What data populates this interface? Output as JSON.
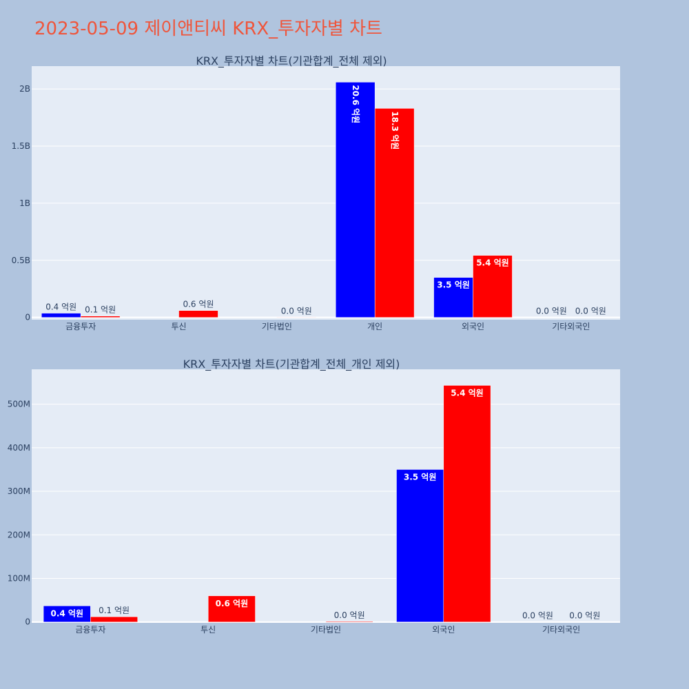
{
  "page": {
    "title": "2023-05-09 제이앤티씨 KRX_투자자별 차트",
    "title_color": "#ef553b",
    "background": "#b0c4de",
    "plot_background": "#e5ecf6"
  },
  "chart_data": [
    {
      "type": "bar",
      "title": "KRX_투자자별 차트(기관합계_전체 제외)",
      "categories": [
        "금융투자",
        "투신",
        "기타법인",
        "개인",
        "외국인",
        "기타외국인"
      ],
      "series": [
        {
          "color": "#0000ff",
          "values": [
            37000000,
            0,
            0,
            2060000000,
            350000000,
            0
          ],
          "labels": [
            "0.4 억원",
            "",
            "",
            "20.6 억원",
            "3.5 억원",
            "0.0 억원"
          ],
          "label_positions": [
            "outside",
            "",
            "",
            "inside-rotated",
            "inside",
            "outside"
          ]
        },
        {
          "color": "#ff0000",
          "values": [
            12000000,
            60000000,
            1500000,
            1830000000,
            543000000,
            0
          ],
          "labels": [
            "0.1 억원",
            "0.6 억원",
            "0.0 억원",
            "18.3 억원",
            "5.4 억원",
            "0.0 억원"
          ],
          "label_positions": [
            "outside",
            "outside",
            "outside",
            "inside-rotated",
            "inside",
            "outside"
          ]
        }
      ],
      "y_ticks": [
        0,
        500000000,
        1000000000,
        1500000000,
        2000000000
      ],
      "y_tick_labels": [
        "0",
        "0.5B",
        "1B",
        "1.5B",
        "2B"
      ],
      "ylim": [
        -20000000,
        2200000000
      ],
      "grid": true
    },
    {
      "type": "bar",
      "title": "KRX_투자자별 차트(기관합계_전체_개인 제외)",
      "categories": [
        "금융투자",
        "투신",
        "기타법인",
        "외국인",
        "기타외국인"
      ],
      "series": [
        {
          "color": "#0000ff",
          "values": [
            37000000,
            0,
            0,
            350000000,
            0
          ],
          "labels": [
            "0.4 억원",
            "",
            "",
            "3.5 억원",
            "0.0 억원"
          ],
          "label_positions": [
            "inside",
            "",
            "",
            "inside",
            "outside"
          ]
        },
        {
          "color": "#ff0000",
          "values": [
            12000000,
            60000000,
            1500000,
            543000000,
            0
          ],
          "labels": [
            "0.1 억원",
            "0.6 억원",
            "0.0 억원",
            "5.4 억원",
            "0.0 억원"
          ],
          "label_positions": [
            "outside",
            "inside",
            "outside",
            "inside",
            "outside"
          ]
        }
      ],
      "y_ticks": [
        0,
        100000000,
        200000000,
        300000000,
        400000000,
        500000000
      ],
      "y_tick_labels": [
        "0",
        "100M",
        "200M",
        "300M",
        "400M",
        "500M"
      ],
      "ylim": [
        -2000000,
        580000000
      ],
      "grid": true
    }
  ]
}
